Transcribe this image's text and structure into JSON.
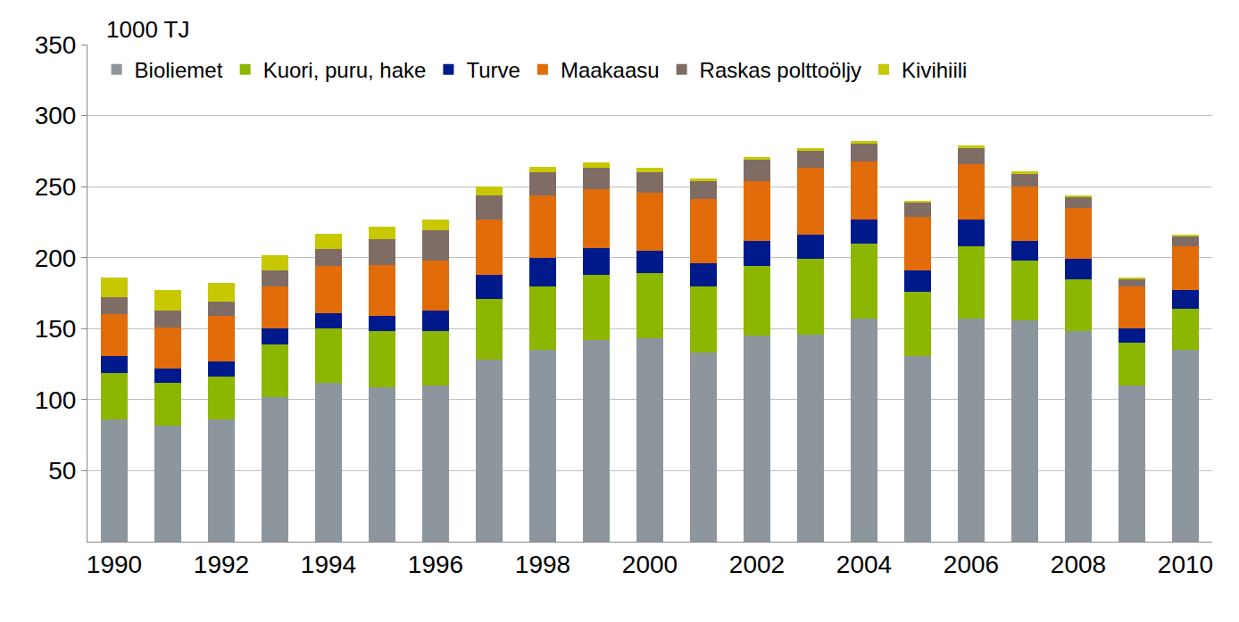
{
  "chart_data": {
    "type": "bar",
    "stacked": true,
    "ylabel": "1000 TJ",
    "categories": [
      "1990",
      null,
      "1992",
      null,
      "1994",
      null,
      "1996",
      null,
      "1998",
      null,
      "2000",
      null,
      "2002",
      null,
      "2004",
      null,
      "2006",
      null,
      "2008",
      null,
      "2010"
    ],
    "series": [
      {
        "name": "Bioliemet",
        "color": "#8c969c",
        "values": [
          86,
          82,
          86,
          102,
          112,
          109,
          110,
          128,
          135,
          142,
          143,
          133,
          145,
          146,
          157,
          131,
          157,
          156,
          148,
          110,
          135
        ]
      },
      {
        "name": "Kuori, puru, hake",
        "color": "#8db600",
        "values": [
          33,
          30,
          30,
          37,
          38,
          39,
          38,
          43,
          45,
          46,
          46,
          47,
          49,
          53,
          53,
          45,
          51,
          42,
          37,
          30,
          29
        ]
      },
      {
        "name": "Turve",
        "color": "#001a8c",
        "values": [
          12,
          10,
          11,
          11,
          11,
          11,
          15,
          17,
          20,
          19,
          16,
          16,
          18,
          17,
          17,
          15,
          19,
          14,
          14,
          10,
          13
        ]
      },
      {
        "name": "Maakaasu",
        "color": "#e36c0a",
        "values": [
          29,
          29,
          32,
          30,
          33,
          36,
          35,
          39,
          44,
          41,
          41,
          45,
          42,
          47,
          41,
          38,
          39,
          38,
          36,
          30,
          31
        ]
      },
      {
        "name": "Raskas polttoöljy",
        "color": "#7f6d65",
        "values": [
          12,
          12,
          10,
          11,
          12,
          18,
          21,
          17,
          16,
          15,
          14,
          13,
          15,
          12,
          12,
          10,
          11,
          9,
          8,
          5,
          7
        ]
      },
      {
        "name": "Kivihiili",
        "color": "#c8c800",
        "values": [
          14,
          14,
          13,
          11,
          11,
          9,
          8,
          6,
          4,
          4,
          3,
          2,
          2,
          2,
          2,
          1,
          2,
          2,
          1,
          1,
          1
        ]
      }
    ],
    "ylim": [
      0,
      350
    ],
    "yticks": [
      50,
      100,
      150,
      200,
      250,
      300,
      350
    ],
    "grid": true,
    "legend": "upper left"
  }
}
